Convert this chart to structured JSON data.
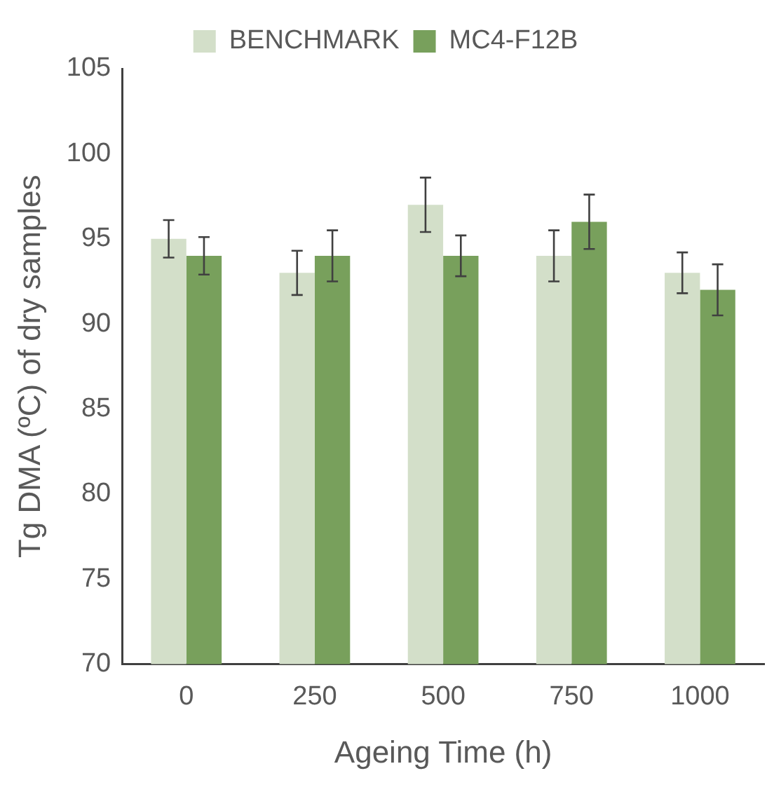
{
  "chart_data": {
    "type": "bar",
    "xlabel": "Ageing Time (h)",
    "ylabel": "Tg DMA (ºC) of dry samples",
    "categories": [
      "0",
      "250",
      "500",
      "750",
      "1000"
    ],
    "series": [
      {
        "name": "BENCHMARK",
        "color": "#d3dfc9",
        "values": [
          95,
          93,
          97,
          94,
          93
        ],
        "errors": [
          1.1,
          1.3,
          1.6,
          1.5,
          1.2
        ]
      },
      {
        "name": "MC4-F12B",
        "color": "#78a05c",
        "values": [
          94,
          94,
          94,
          96,
          92
        ],
        "errors": [
          1.1,
          1.5,
          1.2,
          1.6,
          1.5
        ]
      }
    ],
    "ylim": [
      70,
      105
    ],
    "yticks": [
      70,
      75,
      80,
      85,
      90,
      95,
      100,
      105
    ],
    "grid": false,
    "legend": "top"
  }
}
